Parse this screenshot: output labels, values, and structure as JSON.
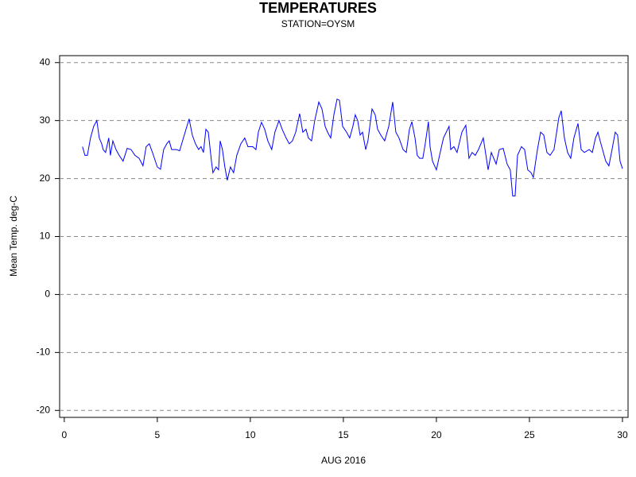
{
  "chart_data": {
    "type": "line",
    "title": "TEMPERATURES",
    "subtitle": "STATION=OYSM",
    "xlabel": "AUG 2016",
    "ylabel": "Mean Temp. deg-C",
    "xlim": [
      -0.25,
      30.3
    ],
    "ylim": [
      -21.2,
      41.2
    ],
    "xticks": [
      0,
      5,
      10,
      15,
      20,
      25,
      30
    ],
    "yticks": [
      -20,
      -10,
      0,
      10,
      20,
      30,
      40
    ],
    "grid": true,
    "x": [
      0.98,
      1.11,
      1.24,
      1.41,
      1.58,
      1.75,
      1.88,
      2.01,
      2.09,
      2.22,
      2.39,
      2.48,
      2.61,
      2.78,
      2.95,
      3.16,
      3.38,
      3.59,
      3.8,
      4.02,
      4.23,
      4.4,
      4.57,
      4.74,
      5.0,
      5.17,
      5.34,
      5.51,
      5.64,
      5.77,
      6.03,
      6.2,
      6.45,
      6.71,
      6.88,
      7.05,
      7.22,
      7.35,
      7.48,
      7.61,
      7.74,
      7.91,
      7.99,
      8.16,
      8.29,
      8.38,
      8.5,
      8.63,
      8.76,
      8.93,
      9.1,
      9.27,
      9.49,
      9.7,
      9.87,
      10.13,
      10.3,
      10.43,
      10.6,
      10.77,
      10.94,
      11.15,
      11.32,
      11.54,
      11.71,
      11.92,
      12.09,
      12.26,
      12.44,
      12.65,
      12.82,
      12.99,
      13.12,
      13.29,
      13.46,
      13.68,
      13.85,
      14.02,
      14.15,
      14.32,
      14.49,
      14.66,
      14.79,
      14.96,
      15.17,
      15.34,
      15.51,
      15.64,
      15.77,
      15.9,
      16.03,
      16.2,
      16.32,
      16.54,
      16.71,
      16.84,
      17.01,
      17.22,
      17.44,
      17.65,
      17.82,
      17.99,
      18.21,
      18.38,
      18.55,
      18.68,
      18.85,
      18.97,
      19.1,
      19.27,
      19.4,
      19.57,
      19.66,
      19.79,
      20.0,
      20.17,
      20.38,
      20.68,
      20.77,
      20.94,
      21.11,
      21.37,
      21.58,
      21.75,
      21.92,
      22.09,
      22.26,
      22.52,
      22.78,
      22.95,
      23.21,
      23.38,
      23.59,
      23.8,
      23.97,
      24.1,
      24.23,
      24.36,
      24.57,
      24.74,
      24.91,
      25.09,
      25.21,
      25.43,
      25.6,
      25.77,
      25.94,
      26.11,
      26.32,
      26.58,
      26.71,
      26.88,
      27.05,
      27.22,
      27.39,
      27.61,
      27.78,
      27.95,
      28.21,
      28.38,
      28.55,
      28.68,
      28.8,
      28.93,
      29.1,
      29.27,
      29.44,
      29.61,
      29.74,
      29.87,
      30.0
    ],
    "series": [
      {
        "name": "Mean Temp.",
        "color": "#0000ff",
        "values": [
          25.5,
          24,
          24,
          27,
          29,
          30,
          27,
          26,
          25,
          24.5,
          27,
          24,
          26.5,
          25,
          24,
          23,
          25.2,
          25,
          24,
          23.5,
          22.2,
          25.5,
          26,
          24.5,
          22,
          21.6,
          25,
          26,
          26.5,
          25,
          25,
          24.8,
          27.5,
          30.3,
          27.5,
          26,
          25,
          25.5,
          24.5,
          28.5,
          28,
          23,
          21,
          22,
          21.5,
          26.5,
          25,
          22,
          19.7,
          22,
          21,
          24,
          26,
          27,
          25.5,
          25.5,
          25,
          28,
          29.7,
          28.5,
          26.5,
          25,
          28,
          30,
          28.5,
          27,
          26,
          26.5,
          28,
          31.2,
          28,
          28.5,
          27,
          26.5,
          30,
          33.2,
          32,
          29,
          28,
          27,
          31,
          33.7,
          33.5,
          29,
          28,
          27,
          29,
          31,
          30,
          27.5,
          28,
          25,
          26.5,
          32,
          31,
          28.5,
          27.5,
          26.5,
          29,
          33.2,
          28,
          27,
          25,
          24.5,
          28.5,
          29.8,
          27,
          24,
          23.5,
          23.5,
          26,
          29.8,
          25.5,
          23,
          21.5,
          24,
          27,
          29,
          25,
          25.5,
          24.5,
          28,
          29.2,
          23.5,
          24.5,
          24,
          25,
          27,
          21.5,
          24.5,
          22.5,
          25,
          25.2,
          22.5,
          21.5,
          17,
          17,
          24,
          25.5,
          25,
          21.5,
          21,
          20.2,
          25,
          28,
          27.5,
          24.5,
          24,
          25,
          30.5,
          31.7,
          27,
          24.5,
          23.5,
          27,
          29.5,
          25,
          24.5,
          25,
          24.5,
          27,
          28,
          26.5,
          25,
          23,
          22.2,
          25,
          28,
          27.5,
          23,
          21.7
        ]
      }
    ]
  }
}
